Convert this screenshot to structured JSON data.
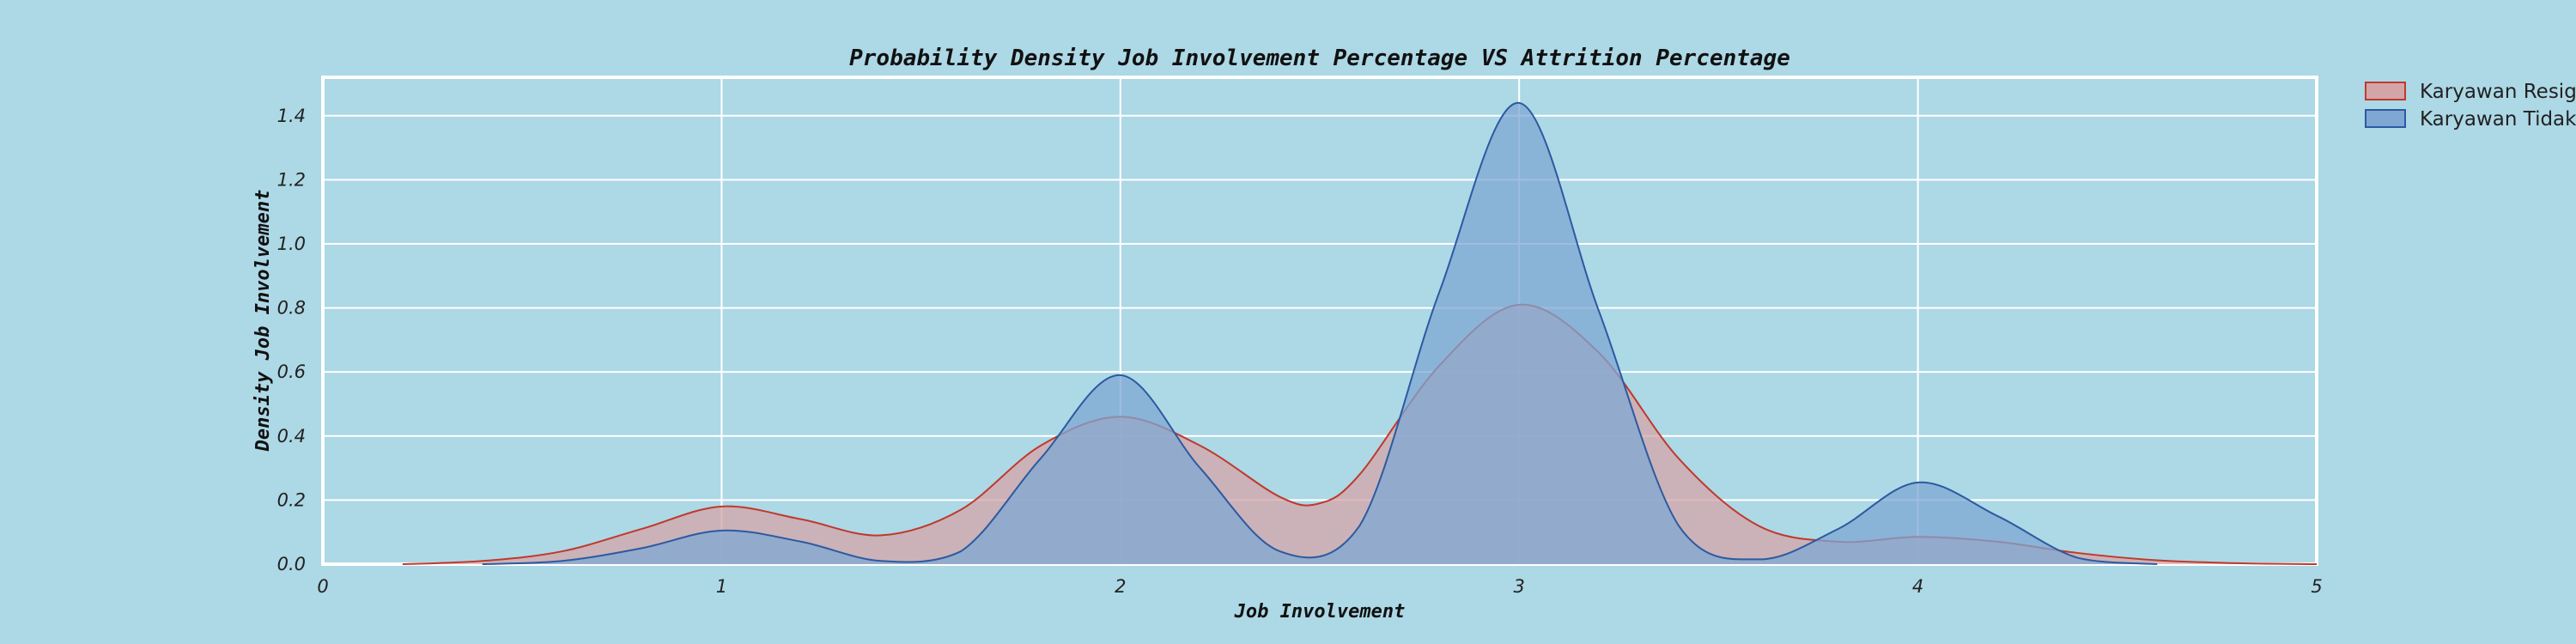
{
  "chart_data": {
    "type": "area",
    "title": "Probability Density Job Involvement Percentage VS Attrition Percentage",
    "xlabel": "Job Involvement",
    "ylabel": "Density Job Involvement",
    "xlim": [
      0,
      5
    ],
    "ylim": [
      0,
      1.52
    ],
    "x_ticks": [
      "0",
      "1",
      "2",
      "3",
      "4",
      "5"
    ],
    "y_ticks": [
      "0.0",
      "0.2",
      "0.4",
      "0.6",
      "0.8",
      "1.0",
      "1.2",
      "1.4"
    ],
    "grid": true,
    "legend_position": "outside-top-right",
    "series": [
      {
        "name": "Karyawan Resign",
        "color": "#c0392b",
        "fill": "#d4a5a8",
        "x": [
          0.2,
          0.4,
          0.6,
          0.8,
          1.0,
          1.2,
          1.4,
          1.6,
          1.8,
          2.0,
          2.2,
          2.4,
          2.5,
          2.6,
          2.8,
          3.0,
          3.2,
          3.4,
          3.6,
          3.8,
          4.0,
          4.2,
          4.4,
          4.6,
          4.8,
          5.0
        ],
        "y": [
          0.0,
          0.01,
          0.04,
          0.11,
          0.18,
          0.14,
          0.09,
          0.17,
          0.37,
          0.46,
          0.37,
          0.21,
          0.19,
          0.28,
          0.62,
          0.81,
          0.66,
          0.33,
          0.12,
          0.07,
          0.085,
          0.07,
          0.035,
          0.012,
          0.003,
          0.0
        ]
      },
      {
        "name": "Karyawan Tidak Resign",
        "color": "#2c5aa0",
        "fill": "#7fa7d3",
        "x": [
          0.4,
          0.6,
          0.8,
          1.0,
          1.2,
          1.4,
          1.6,
          1.8,
          2.0,
          2.2,
          2.4,
          2.6,
          2.8,
          3.0,
          3.2,
          3.4,
          3.6,
          3.8,
          4.0,
          4.2,
          4.4,
          4.6
        ],
        "y": [
          0.0,
          0.01,
          0.05,
          0.105,
          0.07,
          0.01,
          0.04,
          0.33,
          0.59,
          0.3,
          0.04,
          0.12,
          0.85,
          1.44,
          0.79,
          0.12,
          0.015,
          0.11,
          0.255,
          0.15,
          0.02,
          0.0
        ]
      }
    ]
  }
}
